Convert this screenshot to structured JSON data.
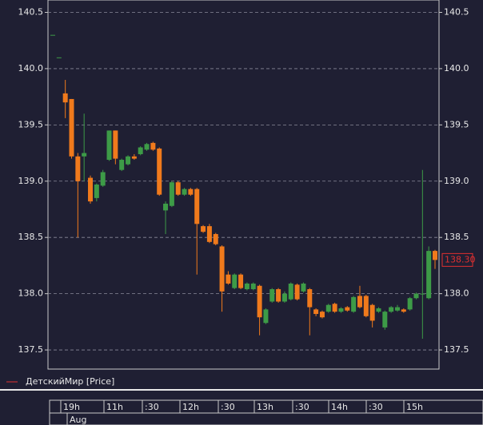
{
  "chart_data": {
    "type": "candlestick",
    "series": [
      {
        "name": "ДетскийМир [Price]",
        "open": [
          140.3,
          140.1,
          139.78,
          139.73,
          139.22,
          139.22,
          139.03,
          138.85,
          138.96,
          139.19,
          139.45,
          139.1,
          139.15,
          139.22,
          139.24,
          139.28,
          139.34,
          139.29,
          138.74,
          138.78,
          138.99,
          138.88,
          138.93,
          138.93,
          138.6,
          138.6,
          138.53,
          138.42,
          138.17,
          138.05,
          138.17,
          138.04,
          138.04,
          138.07,
          137.74,
          137.93,
          138.04,
          137.93,
          137.95,
          138.08,
          138.02,
          138.04,
          137.86,
          137.84,
          137.84,
          137.91,
          137.84,
          137.88,
          137.84,
          137.98,
          137.98,
          137.9,
          137.84,
          137.7,
          137.84,
          137.85,
          137.86,
          137.86,
          137.96,
          138.0,
          137.96,
          138.38
        ],
        "high": [
          140.3,
          140.1,
          139.9,
          139.73,
          139.25,
          139.6,
          139.05,
          138.98,
          139.1,
          139.45,
          139.45,
          139.2,
          139.23,
          139.24,
          139.31,
          139.34,
          139.35,
          139.3,
          138.82,
          139.0,
          139.0,
          138.94,
          138.94,
          138.94,
          138.61,
          138.62,
          138.54,
          138.43,
          138.2,
          138.18,
          138.18,
          138.1,
          138.1,
          138.08,
          137.87,
          138.05,
          138.05,
          138.02,
          138.1,
          138.09,
          138.1,
          138.05,
          137.87,
          137.85,
          137.91,
          137.92,
          137.88,
          137.89,
          137.98,
          138.07,
          137.99,
          137.91,
          137.88,
          137.85,
          137.89,
          137.9,
          137.87,
          137.97,
          138.01,
          139.1,
          138.42,
          138.39
        ],
        "low": [
          140.3,
          140.1,
          139.56,
          139.2,
          138.5,
          139.0,
          138.8,
          138.82,
          138.95,
          139.18,
          139.15,
          139.09,
          139.14,
          139.19,
          139.23,
          139.27,
          139.27,
          138.87,
          138.53,
          138.77,
          138.87,
          138.87,
          138.87,
          138.17,
          138.54,
          138.45,
          138.43,
          137.84,
          138.08,
          138.04,
          138.04,
          138.03,
          138.03,
          137.63,
          137.73,
          137.92,
          137.92,
          137.92,
          137.94,
          137.94,
          138.01,
          137.63,
          137.8,
          137.78,
          137.83,
          137.83,
          137.83,
          137.84,
          137.83,
          137.87,
          137.79,
          137.7,
          137.83,
          137.68,
          137.83,
          137.84,
          137.83,
          137.85,
          137.95,
          137.6,
          137.95,
          138.22
        ],
        "close": [
          140.3,
          140.1,
          139.7,
          139.22,
          139.0,
          139.25,
          138.82,
          138.97,
          139.08,
          139.45,
          139.2,
          139.19,
          139.22,
          139.2,
          139.3,
          139.33,
          139.28,
          138.88,
          138.8,
          138.99,
          138.88,
          138.93,
          138.88,
          138.62,
          138.55,
          138.46,
          138.44,
          138.02,
          138.09,
          138.17,
          138.05,
          138.09,
          138.09,
          137.79,
          137.86,
          138.04,
          137.93,
          138.0,
          138.09,
          137.95,
          138.09,
          137.88,
          137.82,
          137.79,
          137.9,
          137.84,
          137.87,
          137.85,
          137.97,
          137.88,
          137.8,
          137.76,
          137.87,
          137.84,
          137.88,
          137.88,
          137.84,
          137.96,
          138.0,
          138.0,
          138.38,
          138.3
        ]
      }
    ],
    "up_color": "#3d9b47",
    "down_color": "#f07a1c",
    "legend_color": "#e03030",
    "ylim": [
      137.33,
      140.61
    ],
    "yticks": [
      137.5,
      {
        "value": 138,
        "label": "138.0"
      },
      138.5,
      {
        "value": 139,
        "label": "139.0"
      },
      139.5,
      {
        "value": 140,
        "label": "140.0"
      },
      140.5
    ],
    "grid": true,
    "last_price": {
      "value": 138.3,
      "label": "138.30"
    },
    "time_labels": [
      "19h",
      "11h",
      ":30",
      "12h",
      ":30",
      "13h",
      ":30",
      "14h",
      ":30",
      "15h"
    ],
    "date_label": "Aug"
  }
}
